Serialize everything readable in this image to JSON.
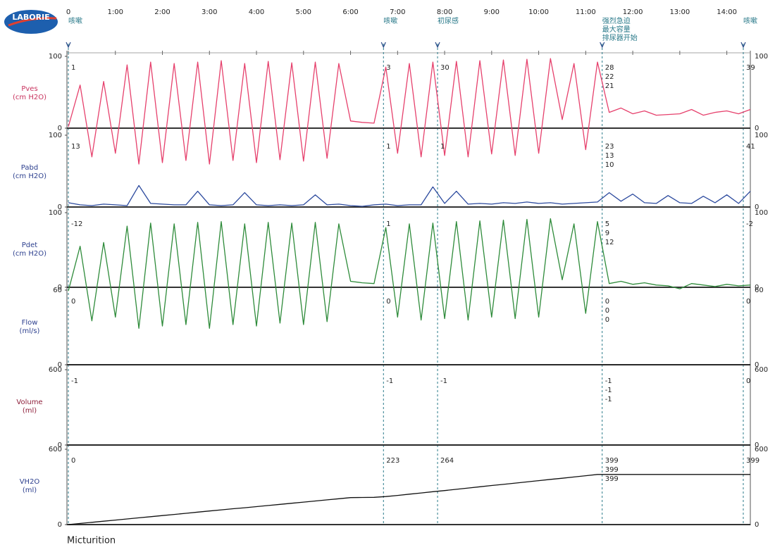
{
  "logo": "LABORIE",
  "footer": "Micturition",
  "events": [
    {
      "time": 0,
      "label": [
        "咳嗽"
      ]
    },
    {
      "time": 6.7,
      "label": [
        "咳嗽"
      ]
    },
    {
      "time": 7.85,
      "label": [
        "初尿感"
      ]
    },
    {
      "time": 11.35,
      "label": [
        "强烈急迫",
        "最大容量",
        "排尿器开始"
      ]
    },
    {
      "time": 14.35,
      "label": [
        "咳嗽"
      ]
    }
  ],
  "chart_data": [
    {
      "type": "line",
      "label": "Pves",
      "unit": "(cm H2O)",
      "label_color": "#c8325e",
      "xlim": [
        0,
        14.5
      ],
      "xticks": [
        0,
        {
          "value": 1,
          "label": "1:00"
        },
        {
          "value": 2,
          "label": "2:00"
        },
        {
          "value": 3,
          "label": "3:00"
        },
        {
          "value": 4,
          "label": "4:00"
        },
        {
          "value": 5,
          "label": "5:00"
        },
        {
          "value": 6,
          "label": "6:00"
        },
        {
          "value": 7,
          "label": "7:00"
        },
        {
          "value": 8,
          "label": "8:00"
        },
        {
          "value": 9,
          "label": "9:00"
        },
        {
          "value": 10,
          "label": "10:00"
        },
        {
          "value": 11,
          "label": "11:00"
        },
        {
          "value": 12,
          "label": "12:00"
        },
        {
          "value": 13,
          "label": "13:00"
        },
        {
          "value": 14,
          "label": "14:00"
        }
      ],
      "ylim": [
        0,
        100
      ],
      "yticks": [
        0,
        100
      ],
      "x": [
        0,
        0.25,
        0.5,
        0.75,
        1,
        1.25,
        1.5,
        1.75,
        2,
        2.25,
        2.5,
        2.75,
        3,
        3.25,
        3.5,
        3.75,
        4,
        4.25,
        4.5,
        4.75,
        5,
        5.25,
        5.5,
        5.75,
        6,
        6.25,
        6.5,
        6.75,
        7,
        7.25,
        7.5,
        7.75,
        8,
        8.25,
        8.5,
        8.75,
        9,
        9.25,
        9.5,
        9.75,
        10,
        10.25,
        10.5,
        10.75,
        11,
        11.25,
        11.5,
        11.75,
        12,
        12.25,
        12.5,
        12.75,
        13,
        13.25,
        13.5,
        13.75,
        14,
        14.25,
        14.5
      ],
      "series": [
        {
          "color": "#e6406c",
          "values": [
            2,
            60,
            -40,
            65,
            -35,
            88,
            -50,
            92,
            -48,
            90,
            -45,
            92,
            -50,
            94,
            -45,
            90,
            -48,
            93,
            -44,
            91,
            -46,
            92,
            -42,
            90,
            10,
            8,
            7,
            85,
            -35,
            90,
            -40,
            92,
            -38,
            93,
            -40,
            94,
            -36,
            95,
            -38,
            96,
            -35,
            97,
            12,
            90,
            -30,
            92,
            22,
            28,
            20,
            24,
            18,
            19,
            20,
            26,
            18,
            22,
            24,
            20,
            26
          ]
        }
      ],
      "annotations": [
        [
          1
        ],
        [
          3
        ],
        [
          30
        ],
        [
          28,
          22,
          21
        ],
        [
          39
        ]
      ]
    },
    {
      "type": "line",
      "label": "Pabd",
      "unit": "(cm H2O)",
      "label_color": "#2c3f8e",
      "xlim": [
        0,
        14.5
      ],
      "ylim": [
        0,
        100
      ],
      "yticks": [
        0,
        100
      ],
      "x": [
        0,
        0.25,
        0.5,
        0.75,
        1,
        1.25,
        1.5,
        1.75,
        2,
        2.25,
        2.5,
        2.75,
        3,
        3.25,
        3.5,
        3.75,
        4,
        4.25,
        4.5,
        4.75,
        5,
        5.25,
        5.5,
        5.75,
        6,
        6.25,
        6.5,
        6.75,
        7,
        7.25,
        7.5,
        7.75,
        8,
        8.25,
        8.5,
        8.75,
        9,
        9.25,
        9.5,
        9.75,
        10,
        10.25,
        10.5,
        10.75,
        11,
        11.25,
        11.5,
        11.75,
        12,
        12.25,
        12.5,
        12.75,
        13,
        13.25,
        13.5,
        13.75,
        14,
        14.25,
        14.5
      ],
      "series": [
        {
          "color": "#2c4a9e",
          "values": [
            6,
            3,
            2,
            4,
            3,
            2,
            30,
            5,
            4,
            3,
            3,
            22,
            3,
            2,
            3,
            20,
            3,
            2,
            3,
            2,
            3,
            17,
            3,
            4,
            2,
            1,
            3,
            4,
            2,
            3,
            3,
            28,
            5,
            22,
            4,
            5,
            4,
            6,
            5,
            7,
            5,
            6,
            4,
            5,
            6,
            7,
            20,
            8,
            18,
            6,
            5,
            16,
            6,
            5,
            15,
            6,
            17,
            5,
            22
          ]
        }
      ],
      "annotations": [
        [
          13
        ],
        [
          1
        ],
        [
          1
        ],
        [
          23,
          13,
          10
        ],
        [
          41
        ]
      ]
    },
    {
      "type": "line",
      "label": "Pdet",
      "unit": "(cm H2O)",
      "label_color": "#2c3f8e",
      "xlim": [
        0,
        14.5
      ],
      "ylim": [
        0,
        100
      ],
      "yticks": [
        0,
        100
      ],
      "x": [
        0,
        0.25,
        0.5,
        0.75,
        1,
        1.25,
        1.5,
        1.75,
        2,
        2.25,
        2.5,
        2.75,
        3,
        3.25,
        3.5,
        3.75,
        4,
        4.25,
        4.5,
        4.75,
        5,
        5.25,
        5.5,
        5.75,
        6,
        6.25,
        6.5,
        6.75,
        7,
        7.25,
        7.5,
        7.75,
        8,
        8.25,
        8.5,
        8.75,
        9,
        9.25,
        9.5,
        9.75,
        10,
        10.25,
        10.5,
        10.75,
        11,
        11.25,
        11.5,
        11.75,
        12,
        12.25,
        12.5,
        12.75,
        13,
        13.25,
        13.5,
        13.75,
        14,
        14.25,
        14.5
      ],
      "series": [
        {
          "color": "#2e8b3a",
          "values": [
            -5,
            55,
            -45,
            60,
            -40,
            82,
            -55,
            86,
            -52,
            85,
            -50,
            87,
            -55,
            88,
            -50,
            85,
            -52,
            87,
            -48,
            86,
            -50,
            87,
            -46,
            85,
            8,
            6,
            5,
            80,
            -40,
            85,
            -44,
            86,
            -42,
            88,
            -44,
            89,
            -40,
            90,
            -42,
            91,
            -40,
            92,
            10,
            85,
            -35,
            88,
            5,
            8,
            4,
            6,
            3,
            2,
            -2,
            5,
            3,
            1,
            4,
            2,
            3
          ]
        }
      ],
      "annotations": [
        [
          -12
        ],
        [
          1
        ],
        [],
        [
          5,
          9,
          12
        ],
        [
          -2
        ]
      ]
    },
    {
      "type": "line",
      "label": "Flow",
      "unit": "(ml/s)",
      "label_color": "#2c3f8e",
      "xlim": [
        0,
        14.5
      ],
      "ylim": [
        0,
        60
      ],
      "yticks": [
        0,
        60
      ],
      "x": [
        0,
        0.25,
        0.5,
        0.75,
        1,
        1.25,
        1.5,
        1.75,
        2,
        2.25,
        2.5,
        2.75,
        3,
        3.25,
        3.5,
        3.75,
        4,
        4.25,
        4.5,
        4.75,
        5,
        5.25,
        5.5,
        5.75,
        6,
        6.25,
        6.5,
        6.75,
        7,
        7.25,
        7.5,
        7.75,
        8,
        8.25,
        8.5,
        8.75,
        9,
        9.25,
        9.5,
        9.75,
        10,
        10.25,
        10.5,
        10.75,
        11,
        11.25,
        11.5,
        11.75,
        12,
        12.25,
        12.5,
        12.75,
        13,
        13.25,
        13.5,
        13.75,
        14,
        14.25,
        14.5
      ],
      "series": [
        {
          "color": "#222222",
          "values": [
            0,
            0,
            0,
            0,
            0,
            0,
            0,
            0,
            0,
            0,
            0,
            0,
            0,
            0,
            0,
            0,
            0,
            0,
            0,
            0,
            0,
            0,
            0,
            0,
            0,
            0,
            0,
            0,
            0,
            0,
            0,
            0,
            0,
            0,
            0,
            0,
            0,
            0,
            0,
            0,
            0,
            0,
            0,
            0,
            0,
            0,
            0,
            0,
            0,
            0,
            0,
            0,
            0,
            0,
            0,
            0,
            0,
            0,
            0
          ]
        }
      ],
      "annotations": [
        [
          0
        ],
        [
          0
        ],
        [],
        [
          0,
          0,
          0
        ],
        [
          0
        ]
      ]
    },
    {
      "type": "line",
      "label": "Volume",
      "unit": "(ml)",
      "label_color": "#8e1f3a",
      "xlim": [
        0,
        14.5
      ],
      "ylim": [
        0,
        600
      ],
      "yticks": [
        0,
        600
      ],
      "x": [
        0,
        0.25,
        0.5,
        0.75,
        1,
        1.25,
        1.5,
        1.75,
        2,
        2.25,
        2.5,
        2.75,
        3,
        3.25,
        3.5,
        3.75,
        4,
        4.25,
        4.5,
        4.75,
        5,
        5.25,
        5.5,
        5.75,
        6,
        6.25,
        6.5,
        6.75,
        7,
        7.25,
        7.5,
        7.75,
        8,
        8.25,
        8.5,
        8.75,
        9,
        9.25,
        9.5,
        9.75,
        10,
        10.25,
        10.5,
        10.75,
        11,
        11.25,
        11.5,
        11.75,
        12,
        12.25,
        12.5,
        12.75,
        13,
        13.25,
        13.5,
        13.75,
        14,
        14.25,
        14.5
      ],
      "series": [
        {
          "color": "#222222",
          "values": [
            0,
            0,
            0,
            0,
            0,
            0,
            0,
            0,
            0,
            0,
            0,
            0,
            0,
            0,
            0,
            0,
            0,
            0,
            0,
            0,
            0,
            0,
            0,
            0,
            0,
            0,
            0,
            0,
            0,
            0,
            0,
            0,
            0,
            0,
            0,
            0,
            0,
            0,
            0,
            0,
            0,
            0,
            0,
            0,
            0,
            0,
            0,
            0,
            0,
            0,
            0,
            0,
            0,
            0,
            0,
            0,
            0,
            0,
            0
          ]
        }
      ],
      "annotations": [
        [
          -1
        ],
        [
          -1
        ],
        [
          -1
        ],
        [
          -1,
          -1,
          -1
        ],
        [
          0
        ]
      ]
    },
    {
      "type": "line",
      "label": "VH2O",
      "unit": "(ml)",
      "label_color": "#2c3f8e",
      "xlim": [
        0,
        14.5
      ],
      "ylim": [
        0,
        600
      ],
      "yticks": [
        0,
        600
      ],
      "x": [
        0,
        0.25,
        0.5,
        0.75,
        1,
        1.25,
        1.5,
        1.75,
        2,
        2.25,
        2.5,
        2.75,
        3,
        3.25,
        3.5,
        3.75,
        4,
        4.25,
        4.5,
        4.75,
        5,
        5.25,
        5.5,
        5.75,
        6,
        6.25,
        6.5,
        6.75,
        7,
        7.25,
        7.5,
        7.75,
        8,
        8.25,
        8.5,
        8.75,
        9,
        9.25,
        9.5,
        9.75,
        10,
        10.25,
        10.5,
        10.75,
        11,
        11.25,
        11.5,
        11.75,
        12,
        12.25,
        12.5,
        12.75,
        13,
        13.25,
        13.5,
        13.75,
        14,
        14.25,
        14.5
      ],
      "series": [
        {
          "color": "#111111",
          "values": [
            0,
            9,
            18,
            27,
            36,
            45,
            54,
            63,
            72,
            81,
            90,
            99,
            108,
            117,
            126,
            134,
            143,
            152,
            161,
            170,
            179,
            188,
            197,
            206,
            215,
            216,
            217,
            223,
            232,
            242,
            252,
            262,
            271,
            281,
            291,
            301,
            311,
            320,
            330,
            340,
            350,
            360,
            369,
            379,
            389,
            399,
            399,
            399,
            399,
            399,
            399,
            399,
            399,
            399,
            399,
            399,
            399,
            399,
            399
          ]
        }
      ],
      "annotations": [
        [
          0
        ],
        [
          223
        ],
        [
          264
        ],
        [
          399,
          399,
          399
        ],
        [
          399
        ]
      ]
    }
  ]
}
